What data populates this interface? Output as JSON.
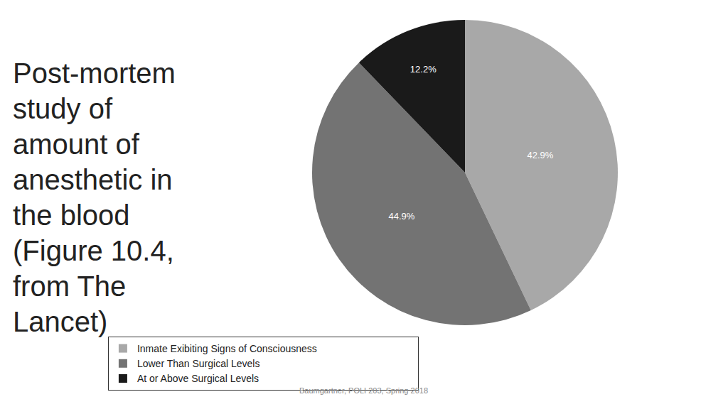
{
  "chart_data": {
    "type": "pie",
    "title": "Post-mortem study of amount of anesthetic in the blood (Figure 10.4, from The Lancet)",
    "categories": [
      "Inmate Exibiting Signs of Consciousness",
      "Lower Than Surgical Levels",
      "At or Above Surgical Levels"
    ],
    "values": [
      42.9,
      44.9,
      12.2
    ],
    "value_labels": [
      "42.9%",
      "44.9%",
      "12.2%"
    ],
    "colors": [
      "#a8a8a8",
      "#737373",
      "#1a1a1a"
    ],
    "data_labels": true,
    "legend": "bottom",
    "annotations": [
      "Baumgartner, POLI 203, Spring 2018"
    ]
  }
}
